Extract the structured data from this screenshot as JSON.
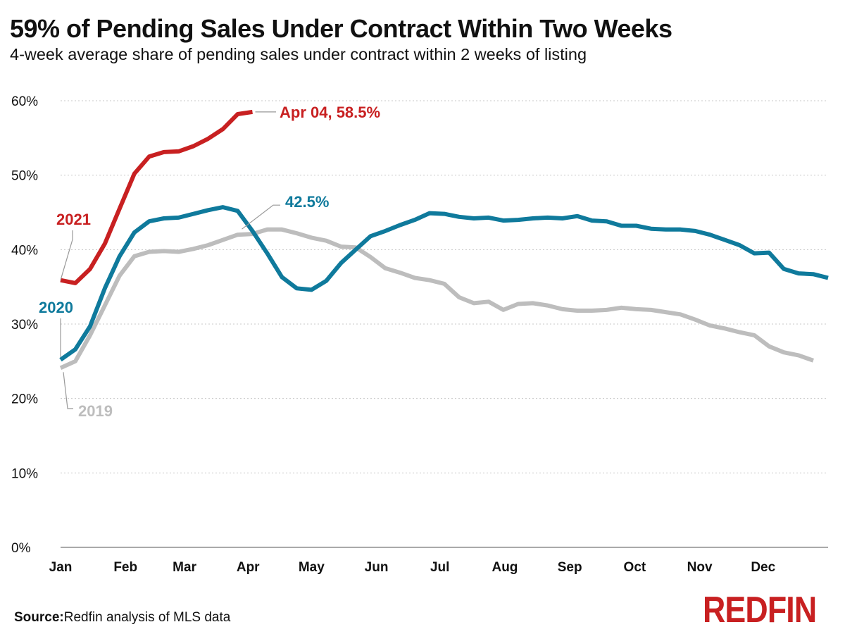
{
  "title": "59% of Pending Sales Under Contract Within Two Weeks",
  "subtitle": "4-week average share of pending sales under contract within 2 weeks of listing",
  "source_label": "Source:",
  "source_text": "Redfin analysis of MLS data",
  "brand": {
    "name": "REDFIN",
    "color": "#c82021"
  },
  "chart_data": {
    "type": "line",
    "x_unit": "week of year",
    "xlim": [
      1,
      53
    ],
    "ylim": [
      0,
      60
    ],
    "y_ticks": [
      0,
      10,
      20,
      30,
      40,
      50,
      60
    ],
    "y_tick_labels": [
      "0%",
      "10%",
      "20%",
      "30%",
      "40%",
      "50%",
      "60%"
    ],
    "x_ticks": [
      1,
      5.4,
      9.4,
      13.7,
      18,
      22.4,
      26.7,
      31.1,
      35.5,
      39.9,
      44.3,
      48.6
    ],
    "x_tick_labels": [
      "Jan",
      "Feb",
      "Mar",
      "Apr",
      "May",
      "Jun",
      "Jul",
      "Aug",
      "Sep",
      "Oct",
      "Nov",
      "Dec"
    ],
    "grid": "horizontal-dashed",
    "series": [
      {
        "name": "2019",
        "color": "#bdbdbd",
        "label": "2019",
        "values": [
          24.1,
          25.0,
          28.5,
          32.5,
          36.5,
          39.1,
          39.7,
          39.8,
          39.7,
          40.1,
          40.6,
          41.3,
          42.0,
          42.1,
          42.7,
          42.7,
          42.2,
          41.6,
          41.2,
          40.4,
          40.3,
          39.0,
          37.5,
          36.9,
          36.2,
          35.9,
          35.4,
          33.6,
          32.8,
          33.0,
          31.9,
          32.7,
          32.8,
          32.5,
          32.0,
          31.8,
          31.8,
          31.9,
          32.2,
          32.0,
          31.9,
          31.6,
          31.3,
          30.6,
          29.8,
          29.4,
          28.9,
          28.5,
          27.0,
          26.2,
          25.8,
          25.1
        ]
      },
      {
        "name": "2020",
        "color": "#0f7a9c",
        "label": "2020",
        "annotation": "42.5%",
        "values": [
          25.2,
          26.6,
          29.7,
          34.8,
          39.1,
          42.3,
          43.8,
          44.2,
          44.3,
          44.8,
          45.3,
          45.7,
          45.2,
          42.5,
          39.5,
          36.3,
          34.8,
          34.6,
          35.8,
          38.2,
          40.0,
          41.8,
          42.5,
          43.3,
          44.0,
          44.9,
          44.8,
          44.4,
          44.2,
          44.3,
          43.9,
          44.0,
          44.2,
          44.3,
          44.2,
          44.5,
          43.9,
          43.8,
          43.2,
          43.2,
          42.8,
          42.7,
          42.7,
          42.5,
          42.0,
          41.3,
          40.6,
          39.5,
          39.6,
          37.4,
          36.8,
          36.7,
          36.2
        ]
      },
      {
        "name": "2021",
        "color": "#c82021",
        "label": "2021",
        "annotation": "Apr 04, 58.5%",
        "values": [
          35.9,
          35.5,
          37.4,
          40.8,
          45.5,
          50.2,
          52.5,
          53.1,
          53.2,
          53.9,
          54.9,
          56.2,
          58.2,
          58.5
        ]
      }
    ]
  }
}
